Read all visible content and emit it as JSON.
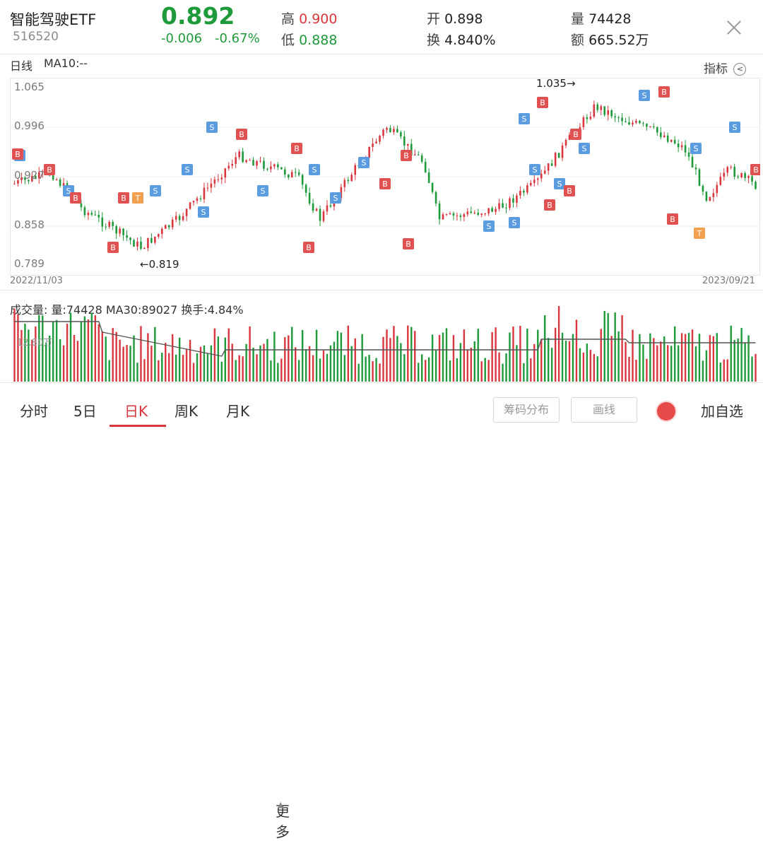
{
  "header": {
    "name": "智能驾驶ETF",
    "code": "516520",
    "price": "0.892",
    "change": "-0.006",
    "change_pct": "-0.67%",
    "high_label": "高",
    "high": "0.900",
    "low_label": "低",
    "low": "0.888",
    "open_label": "开",
    "open": "0.898",
    "turnover_label": "换",
    "turnover": "4.840%",
    "volume_label": "量",
    "volume": "74428",
    "amount_label": "额",
    "amount": "665.52万"
  },
  "kline": {
    "period_label": "日线",
    "ma_label": "MA10:--",
    "indicator_label": "指标",
    "y_ticks": [
      "1.065",
      "0.996",
      "0.927",
      "0.858",
      "0.789"
    ],
    "date_start": "2022/11/03",
    "date_end": "2023/09/21",
    "max_label": "1.035→",
    "min_label": "←0.819",
    "max_value": 1.035,
    "min_value": 0.819
  },
  "volume": {
    "label": "成交量: 量:74428 MA30:89027 换手:4.84%",
    "axis_label": "12.80万"
  },
  "tabs": [
    "分时",
    "5日",
    "日K",
    "周K",
    "月K",
    "更多"
  ],
  "active_tab": "日K",
  "buttons": {
    "chip": "筹码分布",
    "draw": "画线",
    "add": "加自选"
  },
  "colors": {
    "up": "#d9363e",
    "down": "#1f9a3a",
    "buy_marker": "#e05252",
    "sell_marker": "#5b9be0",
    "t_marker": "#f0a050"
  }
}
